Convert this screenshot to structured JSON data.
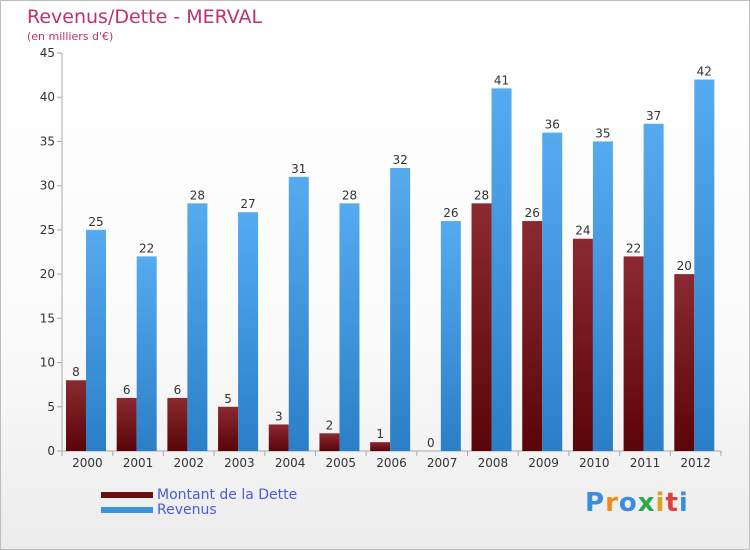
{
  "header": {
    "title": "Revenus/Dette - MERVAL",
    "subtitle": "(en milliers d'€)"
  },
  "colors": {
    "debt": "#7a1520",
    "revenue": "#3a95dc",
    "axis": "#999999",
    "title": "#c0306a",
    "legend_text": "#4a5bd6"
  },
  "legend": {
    "items": [
      {
        "label": "Montant de la Dette",
        "color": "#6b0f12"
      },
      {
        "label": "Revenus",
        "color": "#3a95dc"
      }
    ]
  },
  "logo": {
    "text": "Proxiti",
    "letter_colors": [
      "#3a8de0",
      "#f08a1c",
      "#3a8de0",
      "#2aa84a",
      "#e0a020",
      "#e04040",
      "#3a8de0"
    ]
  },
  "chart_data": {
    "type": "bar",
    "categories": [
      "2000",
      "2001",
      "2002",
      "2003",
      "2004",
      "2005",
      "2006",
      "2007",
      "2008",
      "2009",
      "2010",
      "2011",
      "2012"
    ],
    "series": [
      {
        "name": "Montant de la Dette",
        "values": [
          8,
          6,
          6,
          5,
          3,
          2,
          1,
          0,
          28,
          26,
          24,
          22,
          20
        ]
      },
      {
        "name": "Revenus",
        "values": [
          25,
          22,
          28,
          27,
          31,
          28,
          32,
          26,
          41,
          36,
          35,
          37,
          42
        ]
      }
    ],
    "title": "Revenus/Dette - MERVAL",
    "ylabel": "(en milliers d'€)",
    "xlabel": "",
    "ylim": [
      0,
      45
    ],
    "yticks": [
      0,
      5,
      10,
      15,
      20,
      25,
      30,
      35,
      40,
      45
    ],
    "grid": false,
    "legend_position": "bottom-left"
  }
}
